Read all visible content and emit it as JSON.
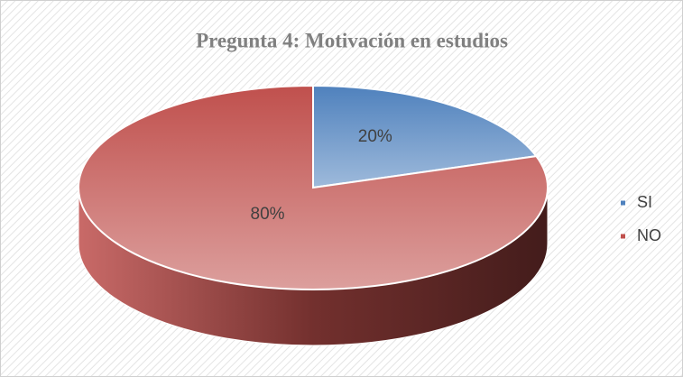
{
  "chart_data": {
    "type": "pie",
    "title": "Pregunta 4: Motivación en estudios",
    "categories": [
      "SI",
      "NO"
    ],
    "values": [
      20,
      80
    ],
    "value_labels": [
      "20%",
      "80%"
    ],
    "colors": [
      "#4f81bd",
      "#c0504d"
    ],
    "legend": "right"
  }
}
